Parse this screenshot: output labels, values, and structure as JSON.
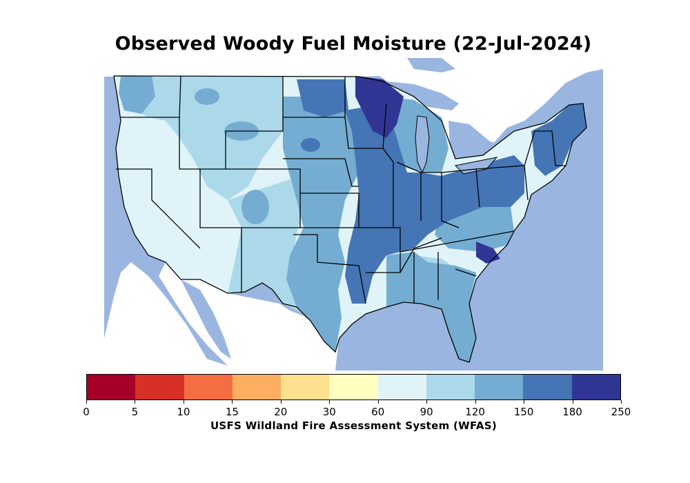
{
  "title": "Observed Woody Fuel Moisture (22-Jul-2024)",
  "source_label": "USFS Wildland Fire Assessment System (WFAS)",
  "colors": {
    "water": "#9ab6e0",
    "land_outside": "#ffffff",
    "border": "#000000"
  },
  "colorbar": {
    "bins": [
      {
        "range": "0-5",
        "color": "#a50026"
      },
      {
        "range": "5-10",
        "color": "#d73027"
      },
      {
        "range": "10-15",
        "color": "#f46d43"
      },
      {
        "range": "15-20",
        "color": "#fdae61"
      },
      {
        "range": "20-30",
        "color": "#fee090"
      },
      {
        "range": "30-60",
        "color": "#ffffbf"
      },
      {
        "range": "60-90",
        "color": "#e0f3f8"
      },
      {
        "range": "90-120",
        "color": "#abd9e9"
      },
      {
        "range": "120-150",
        "color": "#74add1"
      },
      {
        "range": "150-180",
        "color": "#4575b4"
      },
      {
        "range": "180-250",
        "color": "#313695"
      }
    ],
    "tick_labels": [
      "0",
      "5",
      "10",
      "15",
      "20",
      "30",
      "60",
      "90",
      "120",
      "150",
      "180",
      "250"
    ]
  }
}
